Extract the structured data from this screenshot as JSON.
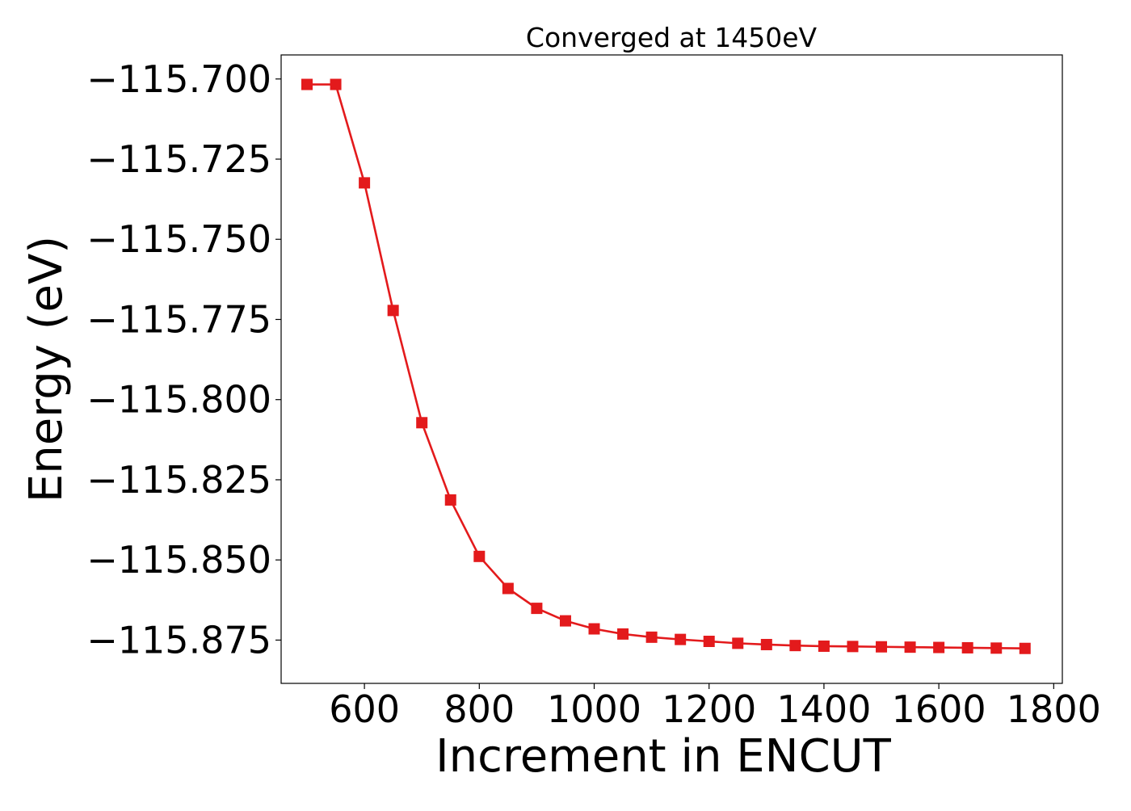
{
  "chart_data": {
    "type": "line",
    "title": "Converged at 1450eV",
    "xlabel": "Increment in ENCUT",
    "ylabel": "Energy (eV)",
    "xlim": [
      455,
      1815
    ],
    "ylim": [
      -115.8885,
      -115.6925
    ],
    "xticks": [
      600,
      800,
      1000,
      1200,
      1400,
      1600,
      1800
    ],
    "yticks": [
      -115.7,
      -115.725,
      -115.75,
      -115.775,
      -115.8,
      -115.825,
      -115.85,
      -115.875
    ],
    "ytick_labels": [
      "−115.700",
      "−115.725",
      "−115.750",
      "−115.775",
      "−115.800",
      "−115.825",
      "−115.850",
      "−115.875"
    ],
    "grid": false,
    "marker": "square",
    "colors": {
      "series": "#e31a1c",
      "axis": "#000000",
      "background": "#ffffff"
    },
    "series": [
      {
        "x": [
          500,
          550,
          600,
          650,
          700,
          750,
          800,
          850,
          900,
          950,
          1000,
          1050,
          1100,
          1150,
          1200,
          1250,
          1300,
          1350,
          1400,
          1450,
          1500,
          1550,
          1600,
          1650,
          1700,
          1750
        ],
        "y": [
          -115.7017,
          -115.7017,
          -115.7324,
          -115.7722,
          -115.8072,
          -115.8313,
          -115.8489,
          -115.8589,
          -115.8651,
          -115.869,
          -115.8715,
          -115.8731,
          -115.8741,
          -115.8748,
          -115.8754,
          -115.876,
          -115.8764,
          -115.8767,
          -115.8769,
          -115.877,
          -115.8771,
          -115.8772,
          -115.8773,
          -115.8774,
          -115.8775,
          -115.8776
        ]
      }
    ]
  }
}
